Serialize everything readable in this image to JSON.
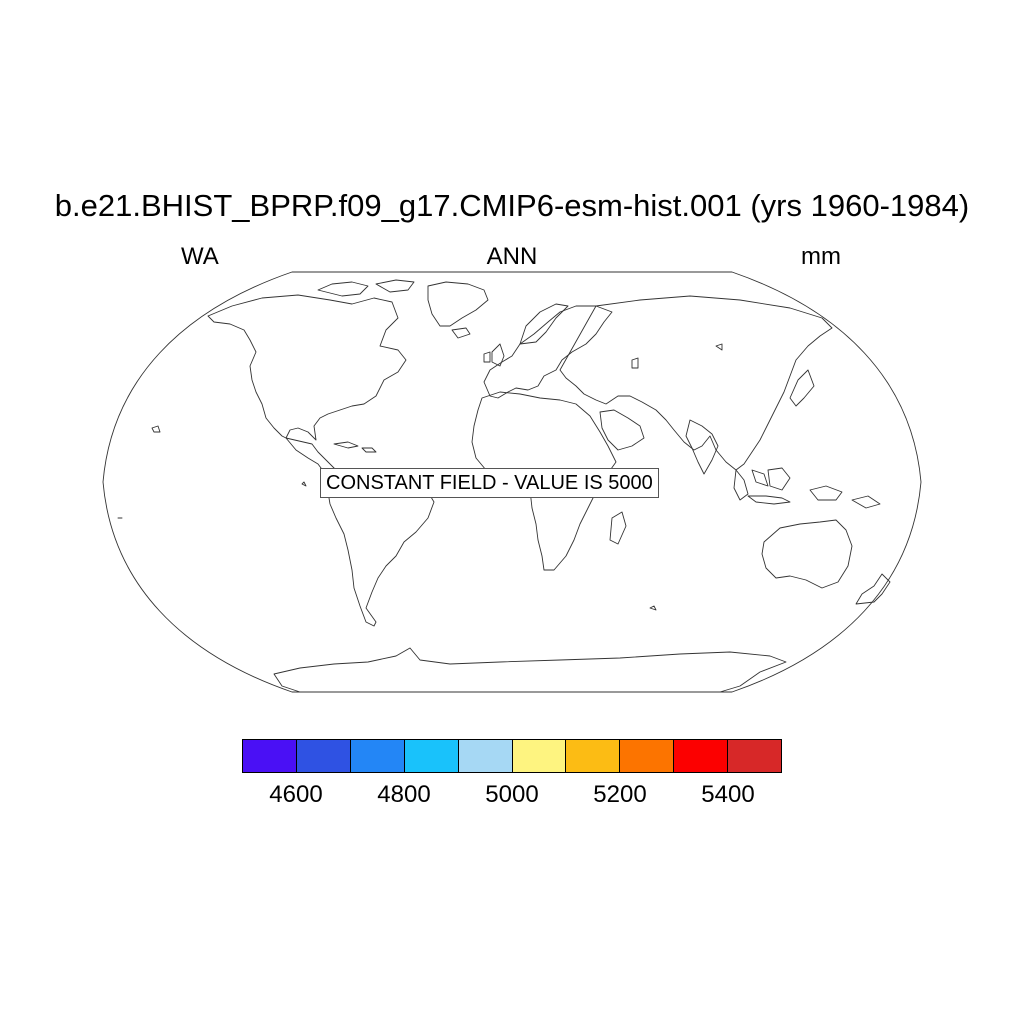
{
  "map": {
    "title": "b.e21.BHIST_BPRP.f09_g17.CMIP6-esm-hist.001 (yrs 1960-1984)",
    "left_label": "WA",
    "center_label": "ANN",
    "right_label": "mm",
    "annotation": "CONSTANT FIELD - VALUE IS 5000",
    "projection": "robinson",
    "outline_color": "#333333"
  },
  "colorbar": {
    "min": 4500,
    "max": 5500,
    "step": 100,
    "colors": [
      "#4a10f5",
      "#2f52e3",
      "#2386f6",
      "#19c2fb",
      "#a6d8f4",
      "#fef480",
      "#fcbc14",
      "#fc7400",
      "#fc0000",
      "#d72828"
    ],
    "tick_values": [
      4600,
      4800,
      5000,
      5200,
      5400
    ],
    "tick_labels": [
      "4600",
      "4800",
      "5000",
      "5200",
      "5400"
    ]
  }
}
